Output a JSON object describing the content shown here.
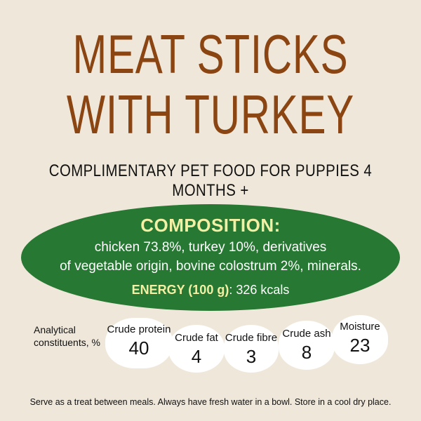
{
  "title": {
    "line1": "MEAT STICKS",
    "line2": "WITH TURKEY"
  },
  "subtitle": "COMPLIMENTARY PET FOOD FOR PUPPIES 4 MONTHS +",
  "composition": {
    "heading": "COMPOSITION:",
    "line1": "chicken 73.8%, turkey 10%, derivatives",
    "line2": "of vegetable origin, bovine colostrum 2%, minerals.",
    "energy_label": "ENERGY (100 g)",
    "energy_value": ": 326 kcals"
  },
  "analytical": {
    "label": "Analytical constituents, %",
    "items": [
      {
        "label": "Crude protein",
        "value": "40"
      },
      {
        "label": "Crude fat",
        "value": "4"
      },
      {
        "label": "Crude fibre",
        "value": "3"
      },
      {
        "label": "Crude ash",
        "value": "8"
      },
      {
        "label": "Moisture",
        "value": "23"
      }
    ]
  },
  "footer": "Serve as a treat between meals. Always have fresh water in a bowl. Store in a cool dry place.",
  "colors": {
    "background": "#efe8da",
    "title": "#8b4513",
    "green": "#267832",
    "accent_yellow": "#f3f0a6"
  }
}
